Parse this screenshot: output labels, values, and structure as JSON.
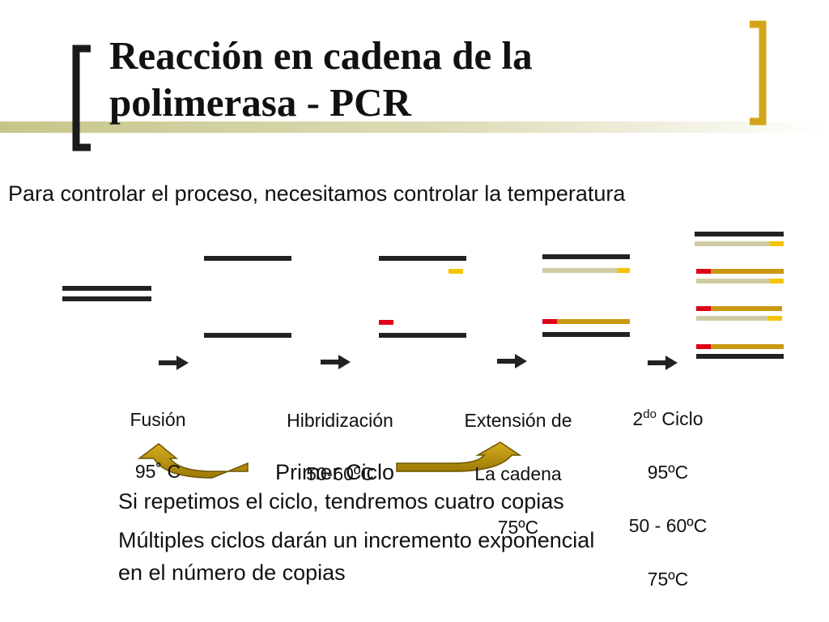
{
  "slide": {
    "title_line1": "Reacción en cadena de la",
    "title_line2": "polimerasa - PCR",
    "intro": "Para controlar el proceso, necesitamos controlar la temperatura"
  },
  "steps": {
    "fusion_name": "Fusión",
    "fusion_temp": "95˚  C",
    "hibridizacion_name": "Hibridización",
    "hibridizacion_temp": "50-60ºC",
    "extension_line1": "Extensión de",
    "extension_line2": "La cadena",
    "extension_temp": "75ºC",
    "ciclo2_num": "2",
    "ciclo2_sup": "do",
    "ciclo2_word": " Ciclo",
    "ciclo2_t1": "95ºC",
    "ciclo2_t2": "50 - 60ºC",
    "ciclo2_t3": "75ºC"
  },
  "primer_ciclo": "Primer Ciclo",
  "notes": {
    "repeat": "Si repetimos el ciclo, tendremos cuatro copias",
    "multiple_line1": "Múltiples ciclos darán un incremento exponencial",
    "multiple_line2": "en el número de copias"
  },
  "colors": {
    "bracket_gold": "#D4A418",
    "dna_strand": "#222222",
    "primer_yellow": "#F5C400",
    "primer_red": "#E0001A",
    "new_strand": "#C9980E",
    "old_strand_faded": "#CFCCA4",
    "cycle_arrow": "#B8920A",
    "title_band": "#C8C88C"
  }
}
